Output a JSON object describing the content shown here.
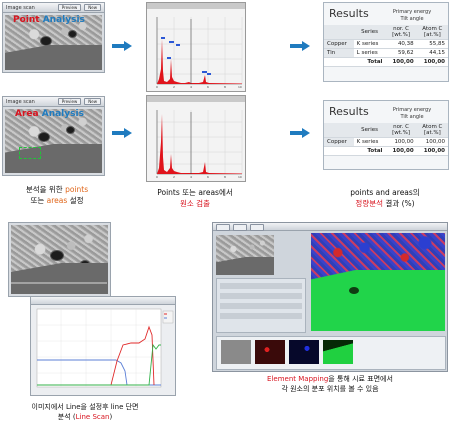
{
  "panels": {
    "point_scan": {
      "title": "Image scan",
      "preview_btn": "Preview",
      "new_btn": "New",
      "label_point": "Point",
      "label_analysis": "Analysis"
    },
    "area_scan": {
      "title": "Image scan",
      "preview_btn": "Preview",
      "new_btn": "New",
      "label_area": "Area",
      "label_analysis": "Analysis"
    }
  },
  "results": [
    {
      "title": "Results",
      "sub1": "Primary energy",
      "sub2": "Tilt angle",
      "col_series": "Series",
      "col_norm": "nor. C\n[wt.%]",
      "col_atom": "Atom C\n[at.%]",
      "rows": [
        {
          "element": "Copper",
          "series": "K series",
          "norm": "40,38",
          "atom": "55,85"
        },
        {
          "element": "Tin",
          "series": "L series",
          "norm": "59,62",
          "atom": "44,15"
        }
      ],
      "total_label": "Total",
      "total_norm": "100,00",
      "total_atom": "100,00"
    },
    {
      "title": "Results",
      "sub1": "Primary energy",
      "sub2": "Tilt angle",
      "col_series": "Series",
      "col_norm": "nor. C\n[wt.%]",
      "col_atom": "Atom C\n[at.%]",
      "rows": [
        {
          "element": "Copper",
          "series": "K series",
          "norm": "100,00",
          "atom": "100,00"
        }
      ],
      "total_label": "Total",
      "total_norm": "100,00",
      "total_atom": "100,00"
    }
  ],
  "captions": {
    "cap1_line1": "분석을 위한 ",
    "cap1_points": "points",
    "cap1_line2a": "또는 ",
    "cap1_areas": "areas",
    "cap1_line2b": " 설정",
    "cap2_line1": "Points 또는 areas에서",
    "cap2_line2": "원소 검출",
    "cap3_line1": "points and areas의",
    "cap3_red": "정량분석",
    "cap3_rest": " 결과 (%)",
    "cap4_line1": "이미지에서 Line을 설정후 line 단면",
    "cap4_line2a": "분석 (",
    "cap4_red": "Line Scan",
    "cap4_line2b": ")",
    "cap5_red": "Element Mapping",
    "cap5_line1": "을 통해 시료 표면에서",
    "cap5_line2": "각 원소의 분포 위치를 볼 수 있음"
  },
  "colors": {
    "accent_blue": "#1f7bbf",
    "caption_red": "#d8141f",
    "caption_orange": "#e0661a"
  }
}
